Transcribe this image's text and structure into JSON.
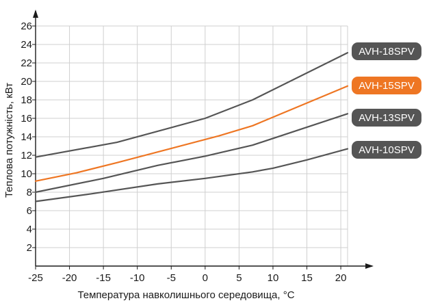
{
  "chart_data": {
    "type": "line",
    "xlabel": "Температура навколишнього середовища, °С",
    "ylabel": "Теплова потужність, кВт",
    "xlim": [
      -25,
      21
    ],
    "ylim": [
      0,
      26
    ],
    "x_ticks": [
      -25,
      -20,
      -15,
      -10,
      -5,
      0,
      5,
      10,
      15,
      20
    ],
    "y_ticks": [
      2,
      4,
      6,
      8,
      10,
      12,
      14,
      16,
      18,
      20,
      22,
      24,
      26
    ],
    "grid": true,
    "legend": "right, labels beside line ends",
    "series": [
      {
        "name": "AVH-18SPV",
        "color": "#555555",
        "x": [
          -25,
          -13,
          0,
          7,
          21
        ],
        "y": [
          11.8,
          13.4,
          16.0,
          18.0,
          23.1
        ]
      },
      {
        "name": "AVH-15SPV",
        "color": "#ee7623",
        "x": [
          -25,
          -19,
          -13,
          2,
          7,
          21
        ],
        "y": [
          9.2,
          10.1,
          11.2,
          14.1,
          15.2,
          19.5
        ]
      },
      {
        "name": "AVH-13SPV",
        "color": "#555555",
        "x": [
          -25,
          -15,
          -7,
          0,
          7,
          21
        ],
        "y": [
          8.0,
          9.5,
          10.9,
          11.9,
          13.1,
          16.5
        ]
      },
      {
        "name": "AVH-10SPV",
        "color": "#555555",
        "x": [
          -25,
          -17,
          -7,
          0,
          7,
          10,
          15,
          21
        ],
        "y": [
          7.0,
          7.8,
          8.9,
          9.5,
          10.2,
          10.6,
          11.5,
          12.7
        ]
      }
    ]
  }
}
